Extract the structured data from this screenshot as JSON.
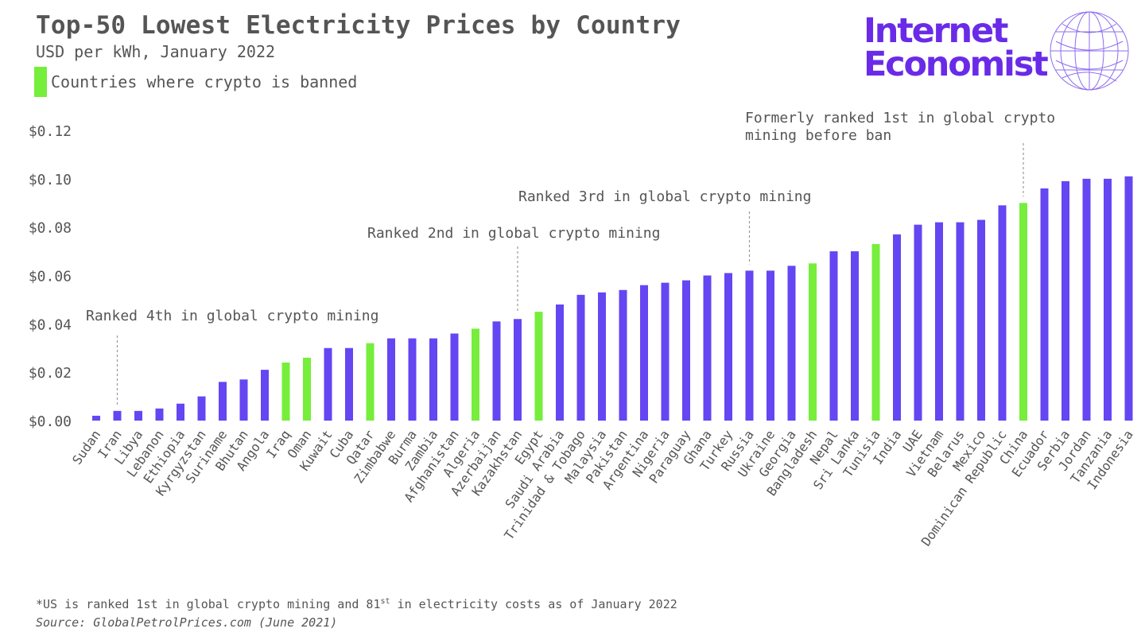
{
  "header": {
    "title": "Top-50 Lowest Electricity Prices by Country",
    "subtitle": "USD per kWh, January 2022",
    "legend_label": "Countries where crypto is banned"
  },
  "logo": {
    "line1": "Internet",
    "line2": "Economist"
  },
  "footnote": {
    "part1": "*US is ranked 1st in global crypto mining and 81",
    "sup": "st",
    "part2": " in electricity costs as of January 2022"
  },
  "source": "Source: GlobalPetrolPrices.com (June 2021)",
  "colors": {
    "bar": "#6446f2",
    "banned": "#76ee3b",
    "text": "#555555",
    "logo": "#6a2be8"
  },
  "chart_data": {
    "type": "bar",
    "title": "Top-50 Lowest Electricity Prices by Country",
    "subtitle": "USD per kWh, January 2022",
    "ylim": [
      0,
      0.12
    ],
    "yticks": [
      0,
      0.02,
      0.04,
      0.06,
      0.08,
      0.1,
      0.12
    ],
    "ytick_labels": [
      "$0.00",
      "$0.02",
      "$0.04",
      "$0.06",
      "$0.08",
      "$0.10",
      "$0.12"
    ],
    "grid": false,
    "legend": [
      {
        "label": "Countries where crypto is banned",
        "color": "#76ee3b"
      }
    ],
    "categories": [
      "Sudan",
      "Iran",
      "Libya",
      "Lebanon",
      "Ethiopia",
      "Kyrgyzstan",
      "Suriname",
      "Bhutan",
      "Angola",
      "Iraq",
      "Oman",
      "Kuwait",
      "Cuba",
      "Qatar",
      "Zimbabwe",
      "Burma",
      "Zambia",
      "Afghanistan",
      "Algeria",
      "Azerbaijan",
      "Kazakhstan",
      "Egypt",
      "Saudi Arabia",
      "Trinidad & Tobago",
      "Malaysia",
      "Pakistan",
      "Argentina",
      "Nigeria",
      "Paraguay",
      "Ghana",
      "Turkey",
      "Russia",
      "Ukraine",
      "Georgia",
      "Bangladesh",
      "Nepal",
      "Sri Lanka",
      "Tunisia",
      "India",
      "UAE",
      "Vietnam",
      "Belarus",
      "Mexico",
      "Dominican Republic",
      "China",
      "Ecuador",
      "Serbia",
      "Jordan",
      "Tanzania",
      "Indonesia"
    ],
    "values": [
      0.002,
      0.004,
      0.004,
      0.005,
      0.007,
      0.01,
      0.016,
      0.017,
      0.021,
      0.024,
      0.026,
      0.03,
      0.03,
      0.032,
      0.034,
      0.034,
      0.034,
      0.036,
      0.038,
      0.041,
      0.042,
      0.045,
      0.048,
      0.052,
      0.053,
      0.054,
      0.056,
      0.057,
      0.058,
      0.06,
      0.061,
      0.062,
      0.062,
      0.064,
      0.065,
      0.07,
      0.07,
      0.073,
      0.077,
      0.081,
      0.082,
      0.082,
      0.083,
      0.089,
      0.09,
      0.096,
      0.099,
      0.1,
      0.1,
      0.101
    ],
    "banned": [
      "Iraq",
      "Oman",
      "Qatar",
      "Algeria",
      "Egypt",
      "Bangladesh",
      "Tunisia",
      "China"
    ],
    "annotations": [
      {
        "category": "Iran",
        "lines": [
          "Ranked 4th in global crypto mining"
        ]
      },
      {
        "category": "Kazakhstan",
        "lines": [
          "Ranked 2nd in global crypto mining"
        ]
      },
      {
        "category": "Russia",
        "lines": [
          "Ranked 3rd in global crypto mining"
        ]
      },
      {
        "category": "China",
        "lines": [
          "Formerly ranked 1st in global crypto",
          "mining before ban"
        ]
      }
    ]
  }
}
